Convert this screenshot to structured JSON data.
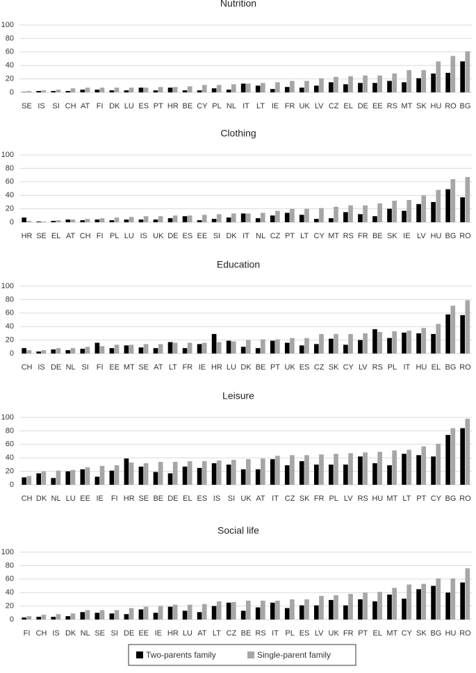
{
  "legend": [
    {
      "name": "Two-parents family",
      "color": "#000000"
    },
    {
      "name": "Single-parent family",
      "color": "#a6a6a6"
    }
  ],
  "chart_data": [
    {
      "type": "bar",
      "title": "Nutrition",
      "ylim": [
        0,
        100
      ],
      "yticks": [
        0,
        20,
        40,
        60,
        80,
        100
      ],
      "grid": true,
      "categories": [
        "SE",
        "IS",
        "SI",
        "CH",
        "AT",
        "FI",
        "DK",
        "LU",
        "ES",
        "PT",
        "HR",
        "BE",
        "CY",
        "PL",
        "NL",
        "IT",
        "LT",
        "IE",
        "FR",
        "UK",
        "LV",
        "CZ",
        "EL",
        "DE",
        "EE",
        "RS",
        "MT",
        "SK",
        "HU",
        "RO",
        "BG"
      ],
      "series": [
        {
          "values": [
            0.5,
            2,
            2,
            2,
            4,
            4,
            3,
            3,
            7,
            3,
            7,
            3,
            3,
            6,
            4,
            13,
            10,
            5,
            8,
            7,
            10,
            15,
            12,
            14,
            14,
            17,
            15,
            21,
            28,
            29,
            46
          ]
        },
        {
          "values": [
            2,
            3,
            4,
            6,
            7,
            7,
            7,
            7,
            7,
            8,
            8,
            9,
            11,
            11,
            12,
            13,
            14,
            15,
            17,
            17,
            21,
            23,
            24,
            25,
            25,
            28,
            33,
            33,
            46,
            54,
            61
          ]
        }
      ]
    },
    {
      "type": "bar",
      "title": "Clothing",
      "ylim": [
        0,
        100
      ],
      "yticks": [
        0,
        20,
        40,
        60,
        80,
        100
      ],
      "grid": true,
      "categories": [
        "HR",
        "SE",
        "EL",
        "AT",
        "CH",
        "FI",
        "PL",
        "LU",
        "IS",
        "UK",
        "DE",
        "ES",
        "EE",
        "SI",
        "DK",
        "IT",
        "NL",
        "CZ",
        "PT",
        "LT",
        "CY",
        "MT",
        "RS",
        "FR",
        "BE",
        "SK",
        "IE",
        "LV",
        "HU",
        "BG",
        "RO"
      ],
      "series": [
        {
          "values": [
            7,
            1,
            2,
            4,
            3,
            4,
            3,
            4,
            4,
            4,
            6,
            9,
            3,
            5,
            7,
            13,
            6,
            10,
            14,
            11,
            5,
            6,
            15,
            12,
            9,
            20,
            17,
            27,
            30,
            49,
            37
          ]
        },
        {
          "values": [
            2,
            1,
            3,
            4,
            5,
            6,
            7,
            8,
            9,
            9,
            10,
            10,
            11,
            12,
            13,
            13,
            14,
            17,
            20,
            20,
            21,
            23,
            25,
            25,
            28,
            32,
            33,
            40,
            48,
            64,
            67
          ]
        }
      ]
    },
    {
      "type": "bar",
      "title": "Education",
      "ylim": [
        0,
        100
      ],
      "yticks": [
        0,
        20,
        40,
        60,
        80,
        100
      ],
      "grid": true,
      "categories": [
        "CH",
        "IS",
        "DE",
        "NL",
        "SI",
        "FI",
        "EE",
        "MT",
        "SE",
        "AT",
        "LT",
        "FR",
        "IE",
        "HR",
        "LU",
        "DK",
        "BE",
        "PT",
        "UK",
        "ES",
        "CZ",
        "SK",
        "CY",
        "LV",
        "RS",
        "PL",
        "IT",
        "HU",
        "EL",
        "BG",
        "RO"
      ],
      "series": [
        {
          "values": [
            8,
            3,
            6,
            5,
            7,
            16,
            8,
            12,
            9,
            8,
            17,
            8,
            14,
            29,
            19,
            10,
            8,
            19,
            16,
            12,
            14,
            22,
            13,
            20,
            36,
            23,
            31,
            30,
            29,
            58,
            57
          ]
        },
        {
          "values": [
            5,
            5,
            8,
            8,
            10,
            11,
            13,
            13,
            14,
            14,
            16,
            16,
            16,
            17,
            18,
            20,
            21,
            21,
            23,
            23,
            29,
            29,
            29,
            30,
            32,
            33,
            34,
            38,
            44,
            71,
            79
          ]
        }
      ]
    },
    {
      "type": "bar",
      "title": "Leisure",
      "ylim": [
        0,
        100
      ],
      "yticks": [
        0,
        20,
        40,
        60,
        80,
        100
      ],
      "grid": true,
      "categories": [
        "CH",
        "DK",
        "NL",
        "LU",
        "EE",
        "IE",
        "FI",
        "HR",
        "SE",
        "BE",
        "DE",
        "EL",
        "ES",
        "IS",
        "SI",
        "UK",
        "AT",
        "IT",
        "CZ",
        "SK",
        "FR",
        "PL",
        "LV",
        "RS",
        "HU",
        "MT",
        "LT",
        "PT",
        "CY",
        "BG",
        "RO"
      ],
      "series": [
        {
          "values": [
            11,
            17,
            10,
            20,
            23,
            12,
            21,
            39,
            27,
            19,
            17,
            27,
            25,
            32,
            30,
            23,
            23,
            38,
            29,
            35,
            30,
            30,
            30,
            42,
            32,
            29,
            46,
            44,
            42,
            74,
            84
          ]
        },
        {
          "values": [
            13,
            20,
            21,
            22,
            26,
            28,
            29,
            33,
            32,
            34,
            34,
            35,
            35,
            36,
            37,
            38,
            39,
            43,
            44,
            44,
            45,
            46,
            47,
            48,
            49,
            51,
            52,
            57,
            61,
            84,
            98
          ]
        }
      ]
    },
    {
      "type": "bar",
      "title": "Social life",
      "ylim": [
        0,
        100
      ],
      "yticks": [
        0,
        20,
        40,
        60,
        80,
        100
      ],
      "grid": true,
      "categories": [
        "FI",
        "CH",
        "IS",
        "DK",
        "NL",
        "SE",
        "SI",
        "DE",
        "EE",
        "IE",
        "HR",
        "LU",
        "AT",
        "LT",
        "CZ",
        "BE",
        "RS",
        "IT",
        "PL",
        "ES",
        "LV",
        "UK",
        "FR",
        "PT",
        "EL",
        "MT",
        "CY",
        "SK",
        "BG",
        "HU",
        "RO"
      ],
      "series": [
        {
          "values": [
            3,
            4,
            4,
            5,
            11,
            10,
            9,
            8,
            15,
            10,
            19,
            13,
            11,
            20,
            25,
            13,
            18,
            25,
            17,
            21,
            21,
            29,
            21,
            30,
            27,
            37,
            31,
            45,
            50,
            40,
            55
          ]
        },
        {
          "values": [
            5,
            7,
            8,
            9,
            14,
            14,
            14,
            17,
            19,
            20,
            22,
            22,
            23,
            27,
            26,
            28,
            28,
            28,
            30,
            30,
            35,
            36,
            38,
            40,
            41,
            47,
            52,
            53,
            61,
            61,
            76
          ]
        }
      ]
    }
  ]
}
